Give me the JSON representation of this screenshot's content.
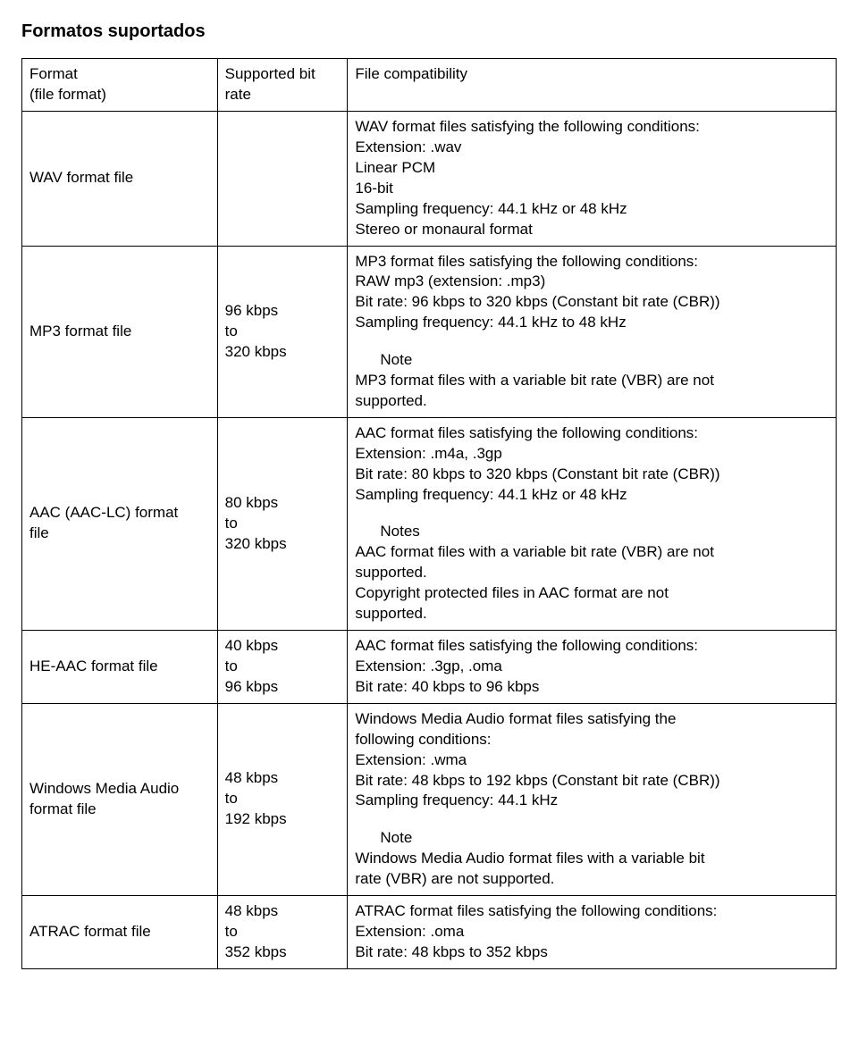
{
  "title": "Formatos suportados",
  "header": {
    "c1a": "Format",
    "c1b": "(file format)",
    "c2a": "Supported bit",
    "c2b": "rate",
    "c3": "File compatibility"
  },
  "rows": {
    "wav": {
      "name": "WAV format file",
      "l1": "WAV format files satisfying the following conditions:",
      "l2": "Extension: .wav",
      "l3": "Linear PCM",
      "l4": "16-bit",
      "l5": "Sampling frequency: 44.1 kHz or 48 kHz",
      "l6": "Stereo or monaural format"
    },
    "mp3": {
      "name": "MP3 format file",
      "r1": "96 kbps",
      "r2": "to",
      "r3": "320 kbps",
      "l1": "MP3 format files satisfying the following conditions:",
      "l2": "RAW mp3 (extension: .mp3)",
      "l3": "Bit rate: 96 kbps to 320 kbps (Constant bit rate (CBR))",
      "l4": "Sampling frequency: 44.1 kHz to 48 kHz",
      "note": "Note",
      "l5": "MP3 format files with a variable bit rate (VBR) are not",
      "l6": "supported."
    },
    "aac": {
      "name1": "AAC (AAC-LC) format",
      "name2": "file",
      "r1": "80 kbps",
      "r2": "to",
      "r3": "320 kbps",
      "l1": "AAC format files satisfying the following conditions:",
      "l2": "Extension: .m4a, .3gp",
      "l3": "Bit rate: 80 kbps to 320 kbps (Constant bit rate (CBR))",
      "l4": "Sampling frequency: 44.1 kHz or 48 kHz",
      "note": "Notes",
      "l5": "AAC format files with a variable bit rate (VBR) are not",
      "l6": "supported.",
      "l7": "Copyright protected files in AAC format are not",
      "l8": "supported."
    },
    "heaac": {
      "name": "HE-AAC format file",
      "r1": "40 kbps",
      "r2": "to",
      "r3": "96 kbps",
      "l1": "AAC format files satisfying the following conditions:",
      "l2": "Extension: .3gp, .oma",
      "l3": "Bit rate: 40 kbps to 96 kbps"
    },
    "wma": {
      "name1": "Windows Media Audio",
      "name2": "format file",
      "r1": "48 kbps",
      "r2": "to",
      "r3": "192 kbps",
      "l1": "Windows Media Audio format files satisfying the",
      "l2": "following conditions:",
      "l3": "Extension: .wma",
      "l4": "Bit rate: 48 kbps to 192 kbps (Constant bit rate (CBR))",
      "l5": "Sampling frequency: 44.1 kHz",
      "note": "Note",
      "l6": "Windows Media Audio format files with a variable bit",
      "l7": "rate (VBR) are not supported."
    },
    "atrac": {
      "name": "ATRAC format file",
      "r1": "48 kbps",
      "r2": "to",
      "r3": "352 kbps",
      "l1": "ATRAC format files satisfying the following conditions:",
      "l2": "Extension: .oma",
      "l3": "Bit rate: 48 kbps to 352 kbps"
    }
  }
}
